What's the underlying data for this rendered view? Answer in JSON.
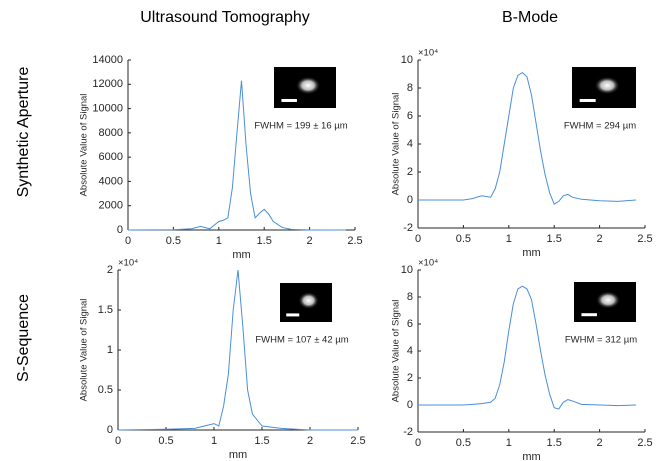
{
  "column_titles": [
    "Ultrasound Tomography",
    "B-Mode"
  ],
  "row_labels": [
    "Synthetic Aperture",
    "S-Sequence"
  ],
  "chart_data": [
    {
      "type": "line",
      "xlabel": "mm",
      "ylabel": "Absolute Value of Signal",
      "annotation": "FWHM = 199 ± 16 µm",
      "x": [
        0,
        0.5,
        0.7,
        0.8,
        0.9,
        1.0,
        1.05,
        1.1,
        1.15,
        1.2,
        1.25,
        1.3,
        1.35,
        1.4,
        1.45,
        1.5,
        1.55,
        1.6,
        1.7,
        1.8,
        2.0,
        2.4
      ],
      "series": [
        {
          "color": "#4a8fd6",
          "values": [
            0,
            20,
            100,
            300,
            100,
            700,
            800,
            1000,
            3500,
            8000,
            12300,
            7000,
            3000,
            1000,
            1400,
            1700,
            1300,
            700,
            200,
            50,
            0,
            0
          ]
        }
      ],
      "xlim": [
        0,
        2.5
      ],
      "ylim": [
        0,
        14000
      ],
      "xticks": [
        0,
        0.5,
        1,
        1.5,
        2,
        2.5
      ],
      "yticks": [
        0,
        2000,
        4000,
        6000,
        8000,
        10000,
        12000,
        14000
      ]
    },
    {
      "type": "line",
      "xlabel": "mm",
      "ylabel": "Absolute Value of Signal",
      "annotation": "FWHM = 294 µm",
      "multiplier": "×10⁴",
      "x": [
        0,
        0.3,
        0.5,
        0.6,
        0.7,
        0.8,
        0.85,
        0.9,
        0.95,
        1.0,
        1.05,
        1.1,
        1.15,
        1.2,
        1.25,
        1.3,
        1.35,
        1.4,
        1.45,
        1.5,
        1.55,
        1.6,
        1.65,
        1.7,
        1.8,
        2.0,
        2.2,
        2.4
      ],
      "series": [
        {
          "color": "#4a8fd6",
          "values": [
            0,
            0,
            0,
            0.1,
            0.3,
            0.2,
            0.8,
            2,
            4,
            6,
            8,
            8.9,
            9.1,
            8.8,
            7.5,
            5.5,
            3.5,
            1.8,
            0.5,
            -0.3,
            -0.1,
            0.3,
            0.4,
            0.2,
            0.05,
            -0.05,
            -0.1,
            0
          ]
        }
      ],
      "xlim": [
        0,
        2.5
      ],
      "ylim": [
        -2,
        10
      ],
      "xticks": [
        0,
        0.5,
        1,
        1.5,
        2,
        2.5
      ],
      "yticks": [
        -2,
        0,
        2,
        4,
        6,
        8,
        10
      ]
    },
    {
      "type": "line",
      "xlabel": "mm",
      "ylabel": "Absolute Value of Signal",
      "annotation": "FWHM = 107 ± 42 µm",
      "multiplier": "×10⁴",
      "x": [
        0,
        0.5,
        0.8,
        0.9,
        1.0,
        1.05,
        1.1,
        1.15,
        1.2,
        1.25,
        1.3,
        1.35,
        1.4,
        1.5,
        1.7,
        2.0,
        2.5
      ],
      "series": [
        {
          "color": "#4a8fd6",
          "values": [
            0,
            0.01,
            0.02,
            0.05,
            0.08,
            0.05,
            0.3,
            0.7,
            1.5,
            2.0,
            1.3,
            0.5,
            0.2,
            0.05,
            0.02,
            0,
            0
          ]
        }
      ],
      "xlim": [
        0,
        2.5
      ],
      "ylim": [
        0,
        2
      ],
      "xticks": [
        0,
        0.5,
        1,
        1.5,
        2,
        2.5
      ],
      "yticks": [
        0,
        0.5,
        1,
        1.5,
        2
      ]
    },
    {
      "type": "line",
      "xlabel": "mm",
      "ylabel": "Absolute Value of Signal",
      "annotation": "FWHM = 312 µm",
      "multiplier": "×10⁴",
      "x": [
        0,
        0.3,
        0.5,
        0.6,
        0.7,
        0.8,
        0.85,
        0.9,
        0.95,
        1.0,
        1.05,
        1.1,
        1.15,
        1.2,
        1.25,
        1.3,
        1.35,
        1.4,
        1.45,
        1.5,
        1.55,
        1.6,
        1.65,
        1.7,
        1.8,
        2.0,
        2.2,
        2.4
      ],
      "series": [
        {
          "color": "#4a8fd6",
          "values": [
            0,
            0,
            0,
            0.05,
            0.1,
            0.2,
            0.5,
            1.5,
            3.2,
            5.5,
            7.5,
            8.6,
            8.8,
            8.6,
            7.8,
            6,
            4,
            2.2,
            0.8,
            -0.2,
            -0.3,
            0.2,
            0.4,
            0.3,
            0.05,
            0,
            -0.05,
            0
          ]
        }
      ],
      "xlim": [
        0,
        2.5
      ],
      "ylim": [
        -2,
        10
      ],
      "xticks": [
        0,
        0.5,
        1,
        1.5,
        2,
        2.5
      ],
      "yticks": [
        -2,
        0,
        2,
        4,
        6,
        8,
        10
      ]
    }
  ]
}
